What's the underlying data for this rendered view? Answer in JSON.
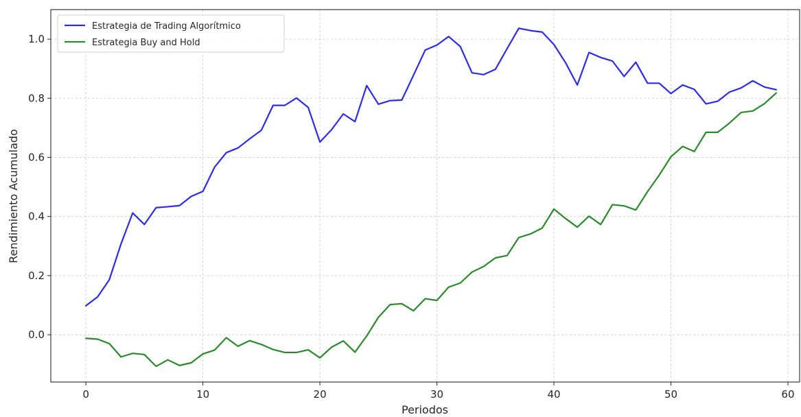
{
  "chart_data": {
    "type": "line",
    "title": "",
    "xlabel": "Periodos",
    "ylabel": "Rendimiento Acumulado",
    "xlim": [
      -3,
      61
    ],
    "ylim": [
      -0.16,
      1.1
    ],
    "xticks": [
      0,
      10,
      20,
      30,
      40,
      50,
      60
    ],
    "yticks": [
      0.0,
      0.2,
      0.4,
      0.6,
      0.8,
      1.0
    ],
    "xtick_labels": [
      "0",
      "10",
      "20",
      "30",
      "40",
      "50",
      "60"
    ],
    "ytick_labels": [
      "0.0",
      "0.2",
      "0.4",
      "0.6",
      "0.8",
      "1.0"
    ],
    "grid": true,
    "legend_position": "top-left",
    "series": [
      {
        "name": "Estrategia de Trading Algorítmico",
        "color": "#2a2af0",
        "values": [
          0.098,
          0.128,
          0.186,
          0.307,
          0.412,
          0.373,
          0.43,
          0.433,
          0.437,
          0.468,
          0.485,
          0.567,
          0.616,
          0.632,
          0.663,
          0.692,
          0.776,
          0.776,
          0.801,
          0.769,
          0.652,
          0.694,
          0.747,
          0.721,
          0.843,
          0.78,
          0.792,
          0.794,
          0.878,
          0.963,
          0.98,
          1.009,
          0.975,
          0.886,
          0.88,
          0.898,
          0.968,
          1.037,
          1.029,
          1.024,
          0.982,
          0.92,
          0.845,
          0.955,
          0.938,
          0.926,
          0.874,
          0.922,
          0.851,
          0.851,
          0.816,
          0.845,
          0.83,
          0.781,
          0.79,
          0.821,
          0.835,
          0.859,
          0.838,
          0.829
        ]
      },
      {
        "name": "Estrategia Buy and Hold",
        "color": "#2a8a2a",
        "values": [
          -0.012,
          -0.015,
          -0.03,
          -0.075,
          -0.063,
          -0.067,
          -0.107,
          -0.085,
          -0.104,
          -0.095,
          -0.065,
          -0.052,
          -0.01,
          -0.039,
          -0.02,
          -0.033,
          -0.05,
          -0.06,
          -0.06,
          -0.051,
          -0.078,
          -0.042,
          -0.021,
          -0.059,
          -0.004,
          0.059,
          0.102,
          0.105,
          0.081,
          0.122,
          0.116,
          0.161,
          0.175,
          0.212,
          0.231,
          0.26,
          0.268,
          0.329,
          0.341,
          0.361,
          0.425,
          0.393,
          0.364,
          0.401,
          0.373,
          0.44,
          0.436,
          0.422,
          0.484,
          0.54,
          0.602,
          0.637,
          0.62,
          0.685,
          0.685,
          0.716,
          0.752,
          0.757,
          0.782,
          0.818
        ]
      }
    ]
  }
}
